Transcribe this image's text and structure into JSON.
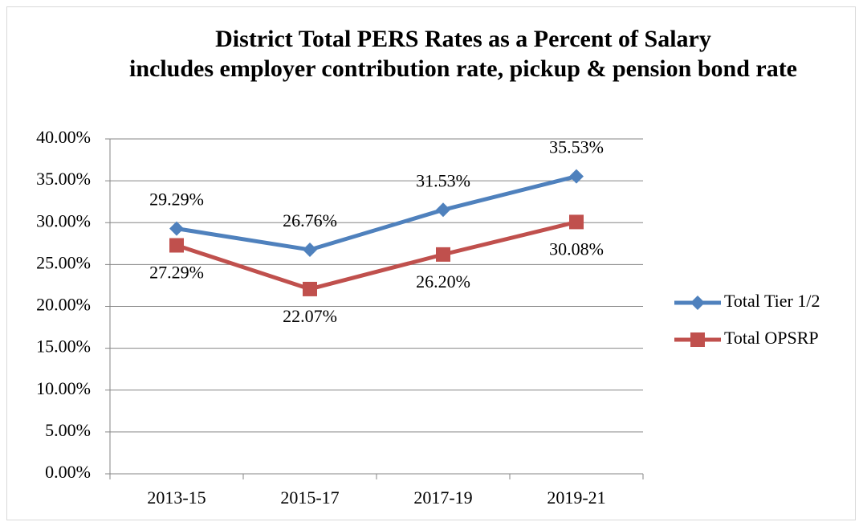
{
  "chart_data": {
    "type": "line",
    "title": "District Total PERS Rates as a Percent of Salary",
    "subtitle": "includes employer contribution rate, pickup & pension bond rate",
    "categories": [
      "2013-15",
      "2015-17",
      "2017-19",
      "2019-21"
    ],
    "series": [
      {
        "name": "Total Tier 1/2",
        "color": "#4f81bd",
        "marker": "diamond",
        "values": [
          29.29,
          26.76,
          31.53,
          35.53
        ],
        "value_labels": [
          "29.29%",
          "26.76%",
          "31.53%",
          "35.53%"
        ]
      },
      {
        "name": "Total OPSRP",
        "color": "#c0504d",
        "marker": "square",
        "values": [
          27.29,
          22.07,
          26.2,
          30.08
        ],
        "value_labels": [
          "27.29%",
          "22.07%",
          "26.20%",
          "30.08%"
        ]
      }
    ],
    "ylim": [
      0,
      40
    ],
    "yticks": [
      {
        "value": 0,
        "label": "0.00%"
      },
      {
        "value": 5,
        "label": "5.00%"
      },
      {
        "value": 10,
        "label": "10.00%"
      },
      {
        "value": 15,
        "label": "15.00%"
      },
      {
        "value": 20,
        "label": "20.00%"
      },
      {
        "value": 25,
        "label": "25.00%"
      },
      {
        "value": 30,
        "label": "30.00%"
      },
      {
        "value": 35,
        "label": "35.00%"
      },
      {
        "value": 40,
        "label": "40.00%"
      }
    ],
    "grid": true,
    "legend": "right"
  }
}
